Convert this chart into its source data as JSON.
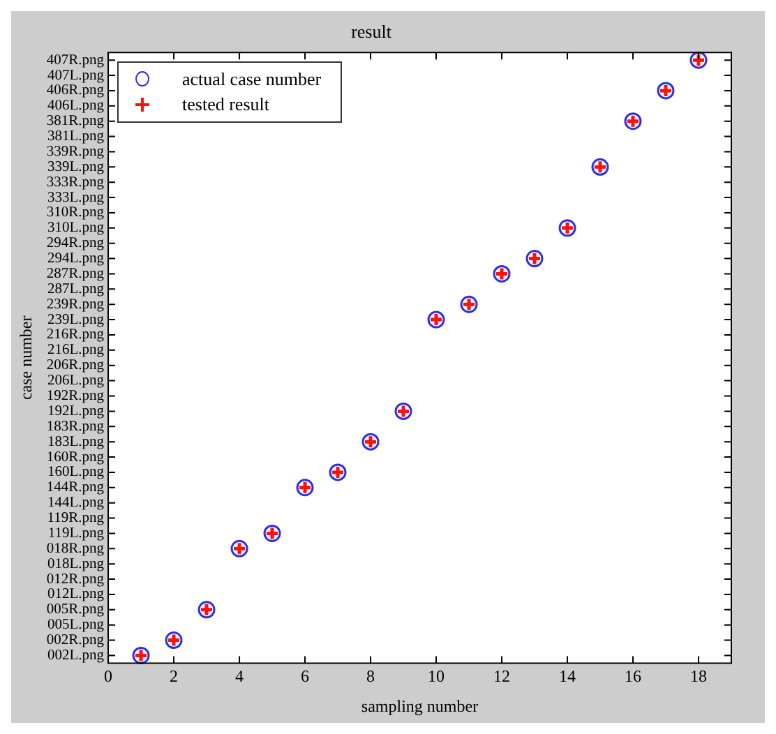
{
  "chart_data": {
    "type": "scatter",
    "orientation": "horizontal",
    "title": "result",
    "xlabel": "sampling number",
    "ylabel": "case number",
    "categories": [
      "407R.png",
      "407L.png",
      "406R.png",
      "406L.png",
      "381R.png",
      "381L.png",
      "339R.png",
      "339L.png",
      "333R.png",
      "333L.png",
      "310R.png",
      "310L.png",
      "294R.png",
      "294L.png",
      "287R.png",
      "287L.png",
      "239R.png",
      "239L.png",
      "216R.png",
      "216L.png",
      "206R.png",
      "206L.png",
      "192R.png",
      "192L.png",
      "183R.png",
      "183L.png",
      "160R.png",
      "160L.png",
      "144R.png",
      "144L.png",
      "119R.png",
      "119L.png",
      "018R.png",
      "018L.png",
      "012R.png",
      "012L.png",
      "005R.png",
      "005L.png",
      "002R.png",
      "002L.png"
    ],
    "series": [
      {
        "name": "actual case number",
        "color": "#3030e0",
        "marker": "circle",
        "values": [
          18,
          null,
          17,
          null,
          16,
          null,
          null,
          15,
          null,
          null,
          null,
          14,
          null,
          13,
          12,
          null,
          11,
          10,
          null,
          null,
          null,
          null,
          null,
          9,
          null,
          8,
          null,
          7,
          6,
          null,
          null,
          5,
          4,
          null,
          null,
          null,
          3,
          null,
          2,
          1
        ]
      },
      {
        "name": "tested result",
        "color": "#ff1010",
        "marker": "cross",
        "values": [
          18,
          null,
          17,
          null,
          16,
          null,
          null,
          15,
          null,
          null,
          null,
          14,
          null,
          13,
          12,
          null,
          11,
          10,
          null,
          null,
          null,
          null,
          null,
          9,
          null,
          8,
          null,
          7,
          6,
          null,
          null,
          5,
          4,
          null,
          null,
          null,
          3,
          null,
          2,
          1
        ]
      }
    ],
    "xlim": [
      0,
      19
    ],
    "xticks": [
      0,
      2,
      4,
      6,
      8,
      10,
      12,
      14,
      16,
      18
    ],
    "legend": "top left",
    "grid": false
  }
}
